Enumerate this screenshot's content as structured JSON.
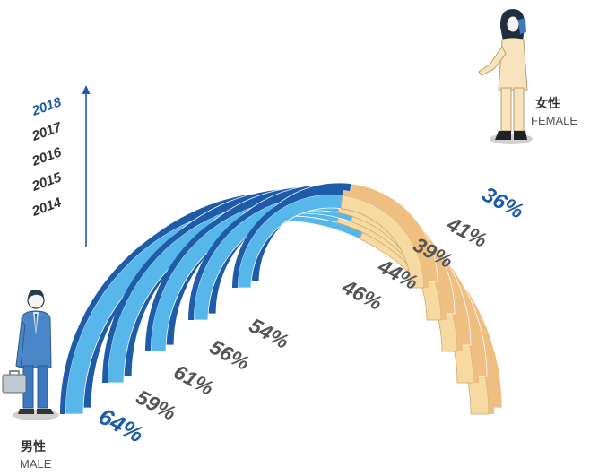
{
  "chart_data": {
    "type": "area",
    "title": "",
    "years": [
      "2018",
      "2017",
      "2016",
      "2015",
      "2014"
    ],
    "series": [
      {
        "name": "男性",
        "name_en": "MALE",
        "values": [
          64,
          59,
          61,
          56,
          54
        ]
      },
      {
        "name": "女性",
        "name_en": "FEMALE",
        "values": [
          36,
          41,
          39,
          44,
          46
        ]
      }
    ],
    "male_labels": [
      "64%",
      "59%",
      "61%",
      "56%",
      "54%"
    ],
    "female_labels": [
      "36%",
      "41%",
      "39%",
      "44%",
      "46%"
    ],
    "highlight_year": "2018",
    "colors": {
      "male_dark": "#1e5ba8",
      "male_light": "#57b7ea",
      "female_light": "#f7d9a2",
      "female_dark": "#eebf80",
      "highlight_text": "#1e5ba8",
      "label_text": "#555555",
      "year_text": "#333333"
    }
  },
  "legend": {
    "male": {
      "cn": "男性",
      "en": "MALE",
      "icon": "man-with-briefcase-icon"
    },
    "female": {
      "cn": "女性",
      "en": "FEMALE",
      "icon": "woman-on-phone-icon"
    }
  }
}
